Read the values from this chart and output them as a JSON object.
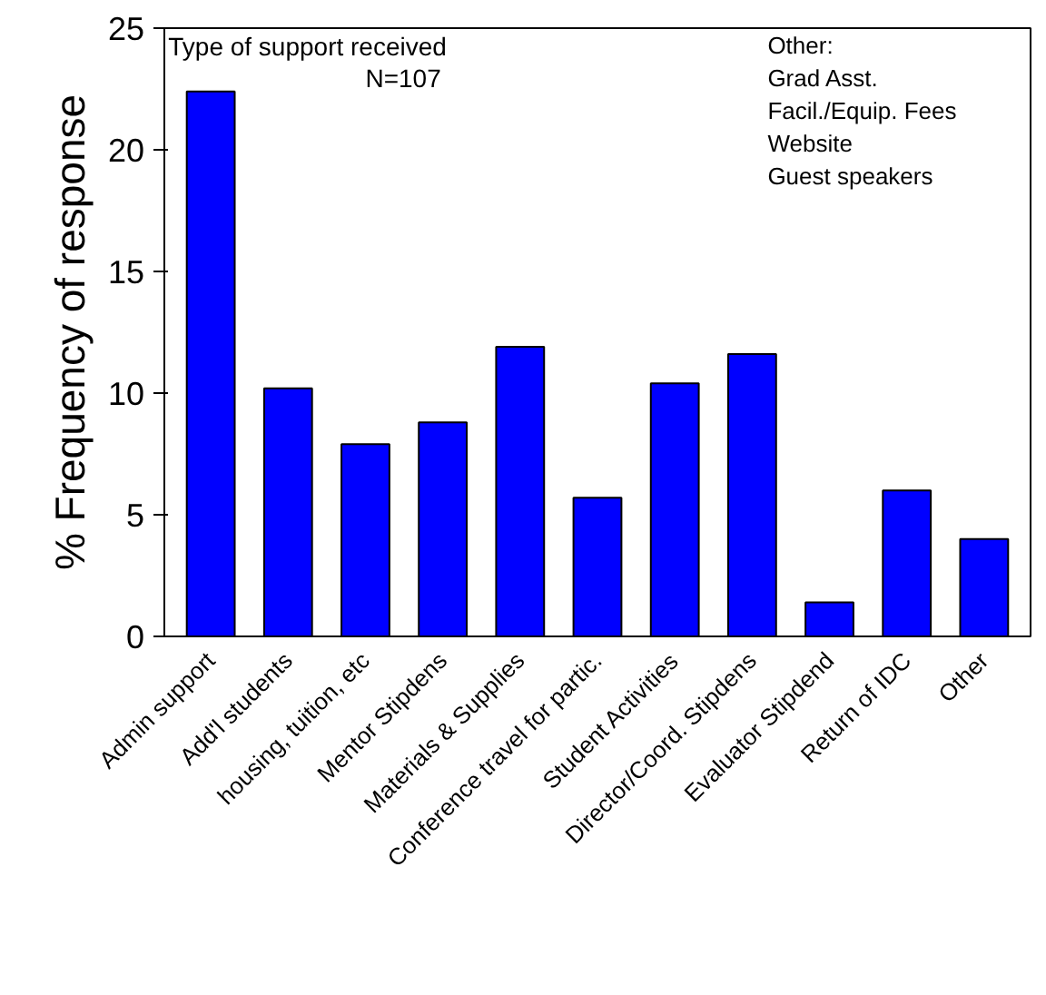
{
  "chart_data": {
    "type": "bar",
    "ylabel": "% Frequency of response",
    "categories": [
      "Admin support",
      "Add'l students",
      "housing, tuition, etc",
      "Mentor Stipdens",
      "Materials & Supplies",
      "Conference travel for partic.",
      "Student Activities",
      "Director/Coord. Stipdens",
      "Evaluator Stipdend",
      "Return of IDC",
      "Other"
    ],
    "values": [
      22.4,
      10.2,
      7.9,
      8.8,
      11.9,
      5.7,
      10.4,
      11.6,
      1.4,
      6.0,
      4.0
    ],
    "color": "#0000ff",
    "ylim": [
      0,
      25
    ],
    "yticks": [
      0,
      5,
      10,
      15,
      20,
      25
    ],
    "annotations": [
      "Type of support received",
      "N=107",
      "Other:\nGrad Asst.\nFacil./Equip. Fees\nWebsite\nGuest speakers"
    ]
  }
}
